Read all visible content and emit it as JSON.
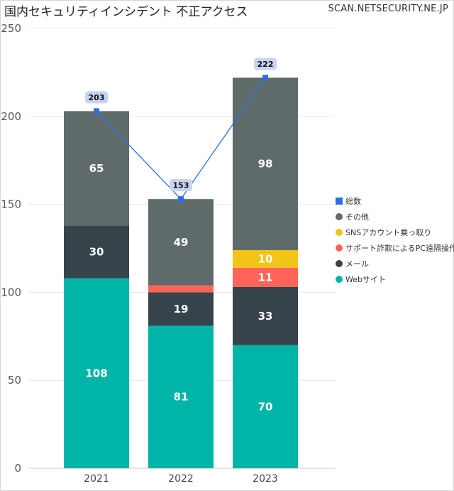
{
  "header": {
    "title": "国内セキュリティインシデント 不正アクセス",
    "source": "SCAN.NETSECURITY.NE.JP"
  },
  "chart_data": {
    "type": "bar",
    "stacked": true,
    "categories": [
      "2021",
      "2022",
      "2023"
    ],
    "ylim": [
      0,
      250
    ],
    "yticks": [
      0,
      50,
      100,
      150,
      200,
      250
    ],
    "grid": true,
    "legend_position": "right",
    "series": [
      {
        "name": "Webサイト",
        "color": "#00B4A7",
        "values": [
          108,
          81,
          70
        ]
      },
      {
        "name": "メール",
        "color": "#37434A",
        "values": [
          30,
          19,
          33
        ]
      },
      {
        "name": "サポート詐欺によるPC遠隔操作",
        "color": "#FF6459",
        "values": [
          0,
          4,
          11
        ]
      },
      {
        "name": "SNSアカウント乗っ取り",
        "color": "#F2C418",
        "values": [
          0,
          0,
          10
        ]
      },
      {
        "name": "その他",
        "color": "#5F6B6B",
        "values": [
          65,
          49,
          98
        ]
      }
    ],
    "total": {
      "name": "総数",
      "type": "line",
      "color": "#2B6FE0",
      "label_bg": "#C8D4F2",
      "values": [
        203,
        153,
        222
      ]
    },
    "legend_order": [
      "総数",
      "その他",
      "SNSアカウント乗っ取り",
      "サポート詐欺によるPC遠隔操作",
      "メール",
      "Webサイト"
    ],
    "segment_labels": [
      {
        "series": "Webサイト",
        "labels": [
          "108",
          "81",
          "70"
        ]
      },
      {
        "series": "メール",
        "labels": [
          "30",
          "19",
          "33"
        ]
      },
      {
        "series": "サポート詐欺によるPC遠隔操作",
        "labels": [
          "",
          "",
          "11"
        ]
      },
      {
        "series": "SNSアカウント乗っ取り",
        "labels": [
          "",
          "",
          "10"
        ]
      },
      {
        "series": "その他",
        "labels": [
          "65",
          "49",
          "98"
        ]
      }
    ]
  }
}
